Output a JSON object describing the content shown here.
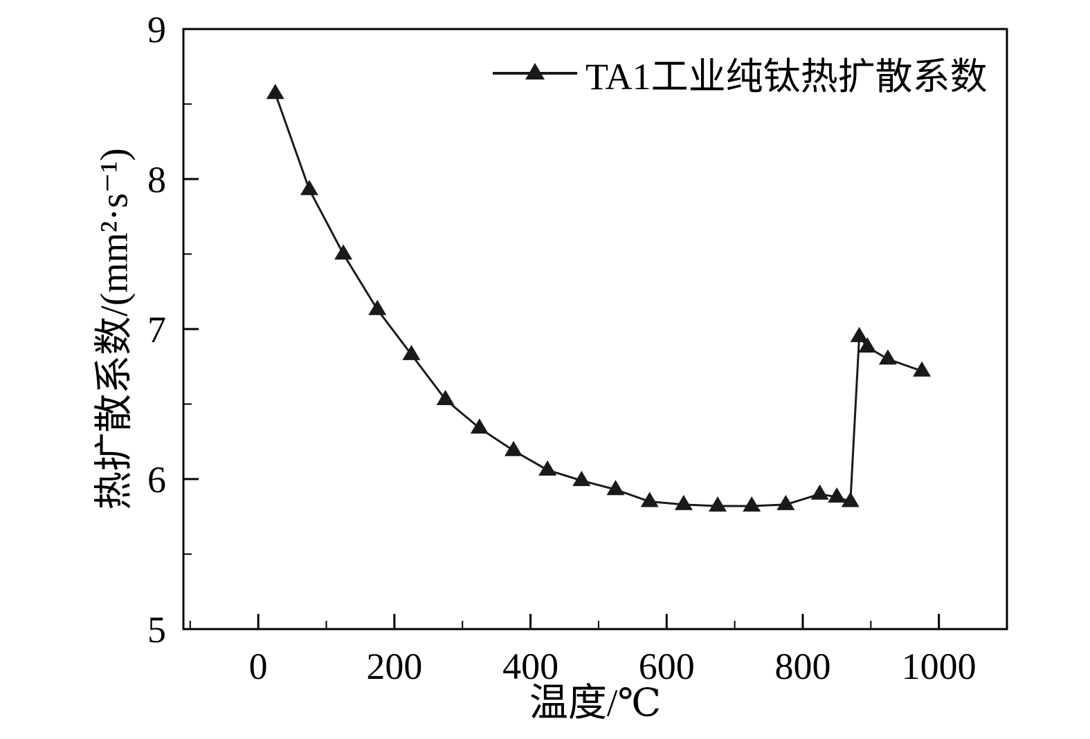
{
  "colors": {
    "axis": "#000000",
    "series": "#1a1a1a",
    "background": "#ffffff"
  },
  "chart_data": {
    "type": "line",
    "title": "",
    "xlabel": "温度/℃",
    "ylabel": "热扩散系数/(mm²·s⁻¹)",
    "grid": false,
    "legend_position": "top-right-inside",
    "xlim": [
      -110,
      1100
    ],
    "ylim": [
      5,
      9
    ],
    "xticks": [
      0,
      200,
      400,
      600,
      800,
      1000
    ],
    "yticks": [
      5,
      6,
      7,
      8,
      9
    ],
    "x_minor_step": 100,
    "y_minor_step": 0.5,
    "series": [
      {
        "name": "TA1工业纯钛热扩散系数",
        "marker": "triangle",
        "color": "#1a1a1a",
        "x": [
          25,
          75,
          125,
          175,
          225,
          275,
          325,
          375,
          425,
          475,
          525,
          575,
          625,
          675,
          725,
          775,
          825,
          850,
          870,
          883,
          895,
          925,
          975
        ],
        "y": [
          8.57,
          7.93,
          7.5,
          7.13,
          6.83,
          6.53,
          6.34,
          6.19,
          6.06,
          5.99,
          5.93,
          5.85,
          5.83,
          5.82,
          5.82,
          5.83,
          5.9,
          5.88,
          5.85,
          6.95,
          6.88,
          6.8,
          6.72
        ]
      }
    ]
  }
}
